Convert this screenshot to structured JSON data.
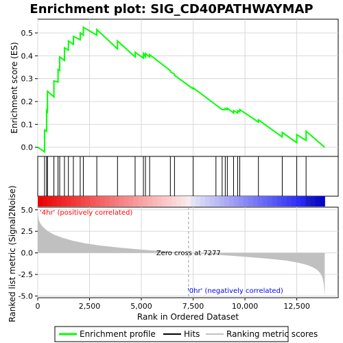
{
  "chart_data": {
    "type": "line",
    "title": "Enrichment plot: SIG_CD40PATHWAYMAP",
    "xlabel": "Rank in Ordered Dataset",
    "xlim": [
      0,
      14500
    ],
    "xticks": [
      0,
      2500,
      5000,
      7500,
      10000,
      12500
    ],
    "xtick_labels": [
      "0",
      "2,500",
      "5,000",
      "7,500",
      "10,000",
      "12,500"
    ],
    "top_panel": {
      "ylabel": "Enrichment score (ES)",
      "ylim": [
        -0.04,
        0.56
      ],
      "yticks": [
        0.0,
        0.1,
        0.2,
        0.3,
        0.4,
        0.5
      ],
      "ytick_labels": [
        "0.0",
        "0.1",
        "0.2",
        "0.3",
        "0.4",
        "0.5"
      ],
      "series": [
        {
          "name": "Enrichment profile",
          "color": "#00ff00",
          "x": [
            0,
            330,
            331,
            430,
            431,
            470,
            471,
            780,
            781,
            980,
            981,
            1060,
            1061,
            1290,
            1291,
            1480,
            1481,
            1720,
            1721,
            2050,
            2051,
            2200,
            2201,
            2850,
            2851,
            3850,
            3851,
            4700,
            4701,
            5100,
            5101,
            5200,
            5201,
            5400,
            5401,
            6400,
            6401,
            6600,
            6601,
            7500,
            7501,
            8600,
            8601,
            8900,
            8901,
            9050,
            9051,
            9150,
            9151,
            9450,
            9451,
            9650,
            9651,
            9750,
            9751,
            10650,
            10651,
            11800,
            11801,
            12500,
            12501,
            12950,
            12951,
            13850
          ],
          "y": [
            0.0,
            -0.02,
            0.075,
            0.07,
            0.16,
            0.155,
            0.245,
            0.22,
            0.29,
            0.285,
            0.34,
            0.335,
            0.395,
            0.38,
            0.435,
            0.425,
            0.465,
            0.45,
            0.485,
            0.47,
            0.5,
            0.49,
            0.525,
            0.49,
            0.515,
            0.43,
            0.465,
            0.395,
            0.415,
            0.39,
            0.41,
            0.395,
            0.41,
            0.395,
            0.405,
            0.335,
            0.33,
            0.32,
            0.315,
            0.255,
            0.26,
            0.185,
            0.185,
            0.165,
            0.165,
            0.165,
            0.17,
            0.165,
            0.17,
            0.15,
            0.16,
            0.15,
            0.16,
            0.155,
            0.165,
            0.11,
            0.12,
            0.045,
            0.065,
            0.02,
            0.055,
            0.03,
            0.07,
            0.0
          ]
        }
      ]
    },
    "hits_panel": {
      "series_name": "Hits",
      "hit_ranks": [
        330,
        430,
        470,
        780,
        980,
        1060,
        1290,
        1480,
        1720,
        2050,
        2200,
        2850,
        3850,
        4700,
        5100,
        5200,
        5400,
        6400,
        6600,
        7500,
        8600,
        8900,
        9050,
        9150,
        9450,
        9650,
        9750,
        10650,
        11800,
        12500,
        12950
      ]
    },
    "bottom_panel": {
      "ylabel": "Ranked list metric (Signal2Noise)",
      "ylim": [
        -5.2,
        5.3
      ],
      "yticks": [
        -5.0,
        -2.5,
        0.0,
        2.5,
        5.0
      ],
      "ytick_labels": [
        "-5.0",
        "-2.5",
        "0.0",
        "2.5",
        "5.0"
      ],
      "series_name": "Ranking metric scores",
      "metric_x": [
        0,
        50,
        150,
        300,
        500,
        800,
        1200,
        1700,
        2300,
        3000,
        4000,
        5000,
        6000,
        7000,
        7277,
        8000,
        9000,
        10000,
        11000,
        12000,
        12600,
        13000,
        13300,
        13500,
        13650,
        13750,
        13800,
        13850
      ],
      "metric_y": [
        4.9,
        3.8,
        3.3,
        2.9,
        2.5,
        2.1,
        1.75,
        1.4,
        1.1,
        0.85,
        0.6,
        0.38,
        0.2,
        0.05,
        0.0,
        -0.12,
        -0.28,
        -0.45,
        -0.65,
        -0.9,
        -1.15,
        -1.4,
        -1.7,
        -2.0,
        -2.4,
        -2.9,
        -3.6,
        -5.0
      ],
      "zero_cross_rank": 7277,
      "zero_cross_label": "Zero cross at 7277",
      "positive_label": "'4hr' (positively correlated)",
      "negative_label": "'0hr' (negatively correlated)",
      "positive_color": "#ff0000",
      "negative_color": "#0000ff"
    },
    "legend": {
      "position": "bottom",
      "entries": [
        {
          "label": "Enrichment profile",
          "color": "#00ff00"
        },
        {
          "label": "Hits",
          "color": "#000000"
        },
        {
          "label": "Ranking metric scores",
          "color": "#c0c0c0"
        }
      ]
    },
    "grid": true
  }
}
